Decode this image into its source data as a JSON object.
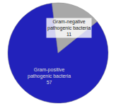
{
  "chart_data": {
    "type": "pie",
    "categories": [
      "Gram-negative\npathogenic bacteria",
      "Gram-positive\npathogenic bacteria"
    ],
    "values": [
      11,
      57
    ],
    "colors": [
      "#a8a8a8",
      "#2222bb"
    ],
    "data_labels": true
  }
}
